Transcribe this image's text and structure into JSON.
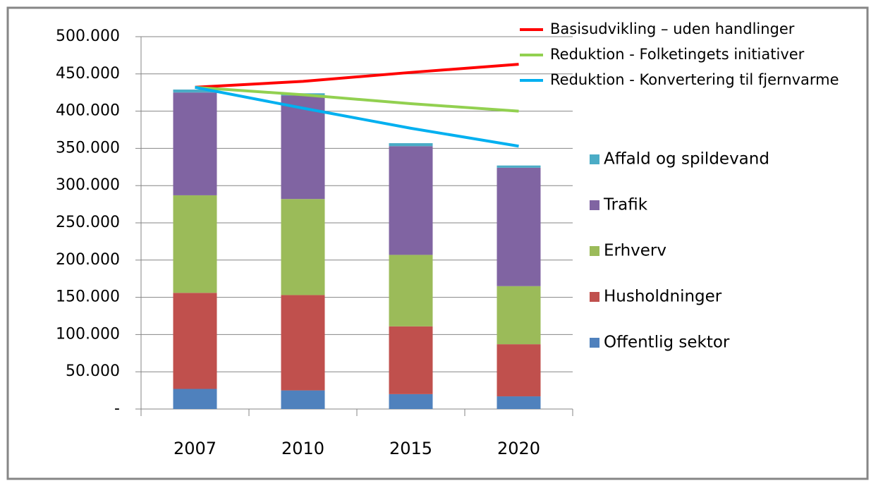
{
  "chart_data": {
    "type": "stacked-bar-line",
    "categories": [
      "2007",
      "2010",
      "2015",
      "2020"
    ],
    "series": [
      {
        "name": "Offentlig sektor",
        "color": "#4f81bd",
        "values": [
          27000,
          25000,
          20000,
          17000
        ]
      },
      {
        "name": "Husholdninger",
        "color": "#c0504d",
        "values": [
          129000,
          128000,
          91000,
          70000
        ]
      },
      {
        "name": "Erhverv",
        "color": "#9bbb59",
        "values": [
          131000,
          129000,
          96000,
          78000
        ]
      },
      {
        "name": "Trafik",
        "color": "#8064a2",
        "values": [
          138000,
          139000,
          146000,
          159000
        ]
      },
      {
        "name": "Affald og spildevand",
        "color": "#4bacc6",
        "values": [
          4000,
          3000,
          4000,
          3000
        ]
      }
    ],
    "lines": [
      {
        "name": "Basisudvikling – uden handlinger",
        "color": "#ff0000",
        "values": [
          432000,
          440000,
          452000,
          463000
        ]
      },
      {
        "name": "Reduktion - Folketingets initiativer",
        "color": "#92d050",
        "values": [
          432000,
          422000,
          410000,
          400000
        ]
      },
      {
        "name": "Reduktion - Konvertering til fjernvarme",
        "color": "#00b0f0",
        "values": [
          432000,
          404000,
          377000,
          353000
        ]
      }
    ],
    "ylim": [
      0,
      500000
    ],
    "yticks": [
      {
        "value": 0,
        "label": "-"
      },
      {
        "value": 50000,
        "label": "50.000"
      },
      {
        "value": 100000,
        "label": "100.000"
      },
      {
        "value": 150000,
        "label": "150.000"
      },
      {
        "value": 200000,
        "label": "200.000"
      },
      {
        "value": 250000,
        "label": "250.000"
      },
      {
        "value": 300000,
        "label": "300.000"
      },
      {
        "value": 350000,
        "label": "350.000"
      },
      {
        "value": 400000,
        "label": "400.000"
      },
      {
        "value": 450000,
        "label": "450.000"
      },
      {
        "value": 500000,
        "label": "500.000"
      }
    ],
    "grid": true
  }
}
